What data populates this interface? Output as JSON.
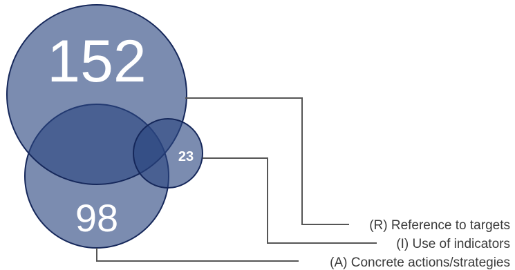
{
  "diagram": {
    "sets": [
      {
        "id": "R",
        "label": "(R) Reference to targets",
        "count": "152"
      },
      {
        "id": "A",
        "label": "(A) Concrete actions/strategies",
        "count": "98"
      },
      {
        "id": "I",
        "label": "(I) Use of indicators",
        "count": "23"
      }
    ]
  },
  "colors": {
    "circle_fill": "#2a4680",
    "circle_stroke": "#15275a",
    "overlap_fill": "#1b2f66",
    "leader_line": "#555555",
    "label_text": "#3a3a3a"
  }
}
